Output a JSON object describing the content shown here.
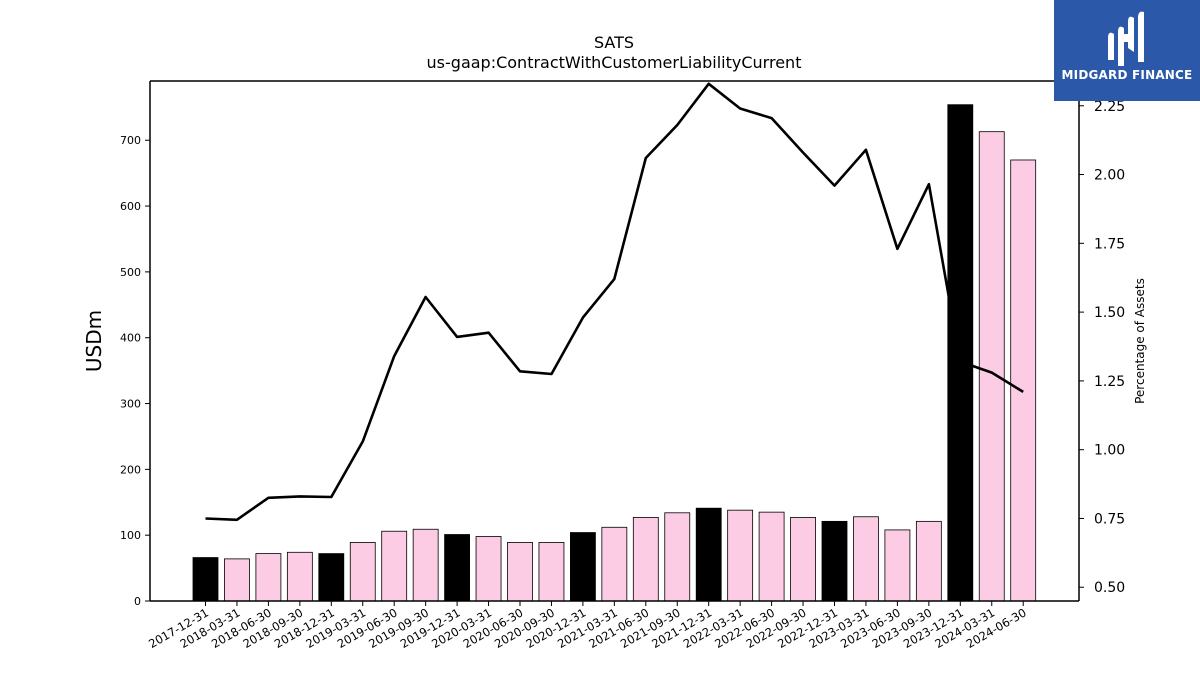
{
  "brand": {
    "name": "MIDGARD FINANCE",
    "logo_icon": "midgard-m-logo-icon",
    "color": "#2b58a8"
  },
  "chart_data": {
    "type": "bar",
    "title": "SATS",
    "subtitle": "us-gaap:ContractWithCustomerLiabilityCurrent",
    "ylabel": "USDm",
    "y2label": "Percentage of Assets",
    "ylim": [
      0,
      790
    ],
    "y2lim": [
      0.45,
      2.34
    ],
    "yticks": [
      0,
      100,
      200,
      300,
      400,
      500,
      600,
      700
    ],
    "y2ticks": [
      "0.50",
      "0.75",
      "1.00",
      "1.25",
      "1.50",
      "1.75",
      "2.00",
      "2.25"
    ],
    "categories": [
      "2017-12-31",
      "2018-03-31",
      "2018-06-30",
      "2018-09-30",
      "2018-12-31",
      "2019-03-31",
      "2019-06-30",
      "2019-09-30",
      "2019-12-31",
      "2020-03-31",
      "2020-06-30",
      "2020-09-30",
      "2020-12-31",
      "2021-03-31",
      "2021-06-30",
      "2021-09-30",
      "2021-12-31",
      "2022-03-31",
      "2022-06-30",
      "2022-09-30",
      "2022-12-31",
      "2023-03-31",
      "2023-06-30",
      "2023-09-30",
      "2023-12-31",
      "2024-03-31",
      "2024-06-30"
    ],
    "series": [
      {
        "kind": "bar",
        "axis": "left",
        "values": [
          66,
          64,
          72,
          74,
          72,
          89,
          106,
          109,
          101,
          98,
          89,
          89,
          104,
          112,
          127,
          134,
          141,
          138,
          135,
          127,
          121,
          128,
          108,
          121,
          754,
          713,
          670
        ]
      },
      {
        "kind": "line",
        "axis": "right",
        "values": [
          0.75,
          0.745,
          0.825,
          0.83,
          0.828,
          1.03,
          1.34,
          1.555,
          1.41,
          1.425,
          1.285,
          1.275,
          1.48,
          1.62,
          2.06,
          2.18,
          2.33,
          2.24,
          2.205,
          2.08,
          1.96,
          2.09,
          1.73,
          1.965,
          1.32,
          1.28,
          1.21
        ]
      }
    ],
    "bar_colors": {
      "year_end": "#000000",
      "quarter": "#fbcce4"
    },
    "line_color": "#000000"
  }
}
